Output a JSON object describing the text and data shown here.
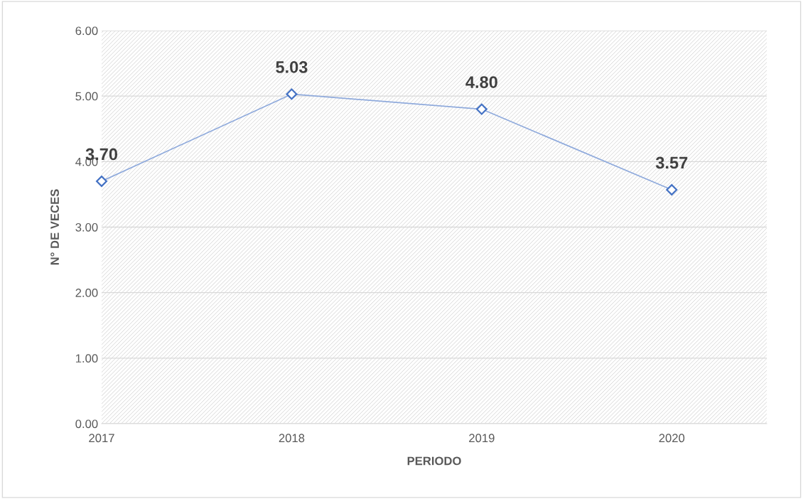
{
  "chart_data": {
    "type": "line",
    "xlabel": "PERIODO",
    "ylabel": "N° DE VECES",
    "categories": [
      "2017",
      "2018",
      "2019",
      "2020"
    ],
    "series": [
      {
        "color": "#8faadc",
        "values": [
          3.7,
          5.03,
          4.8,
          3.57
        ],
        "value_labels": [
          "3.70",
          "5.03",
          "4.80",
          "3.57"
        ]
      }
    ],
    "marker": "diamond",
    "line_style": "solid",
    "ylim": [
      0,
      6
    ],
    "yticks": [
      {
        "value": 0,
        "label": "0.00"
      },
      {
        "value": 1,
        "label": "1.00"
      },
      {
        "value": 2,
        "label": "2.00"
      },
      {
        "value": 3,
        "label": "3.00"
      },
      {
        "value": 4,
        "label": "4.00"
      },
      {
        "value": 5,
        "label": "5.00"
      },
      {
        "value": 6,
        "label": "6.00"
      }
    ],
    "grid": "y",
    "legend": false
  }
}
